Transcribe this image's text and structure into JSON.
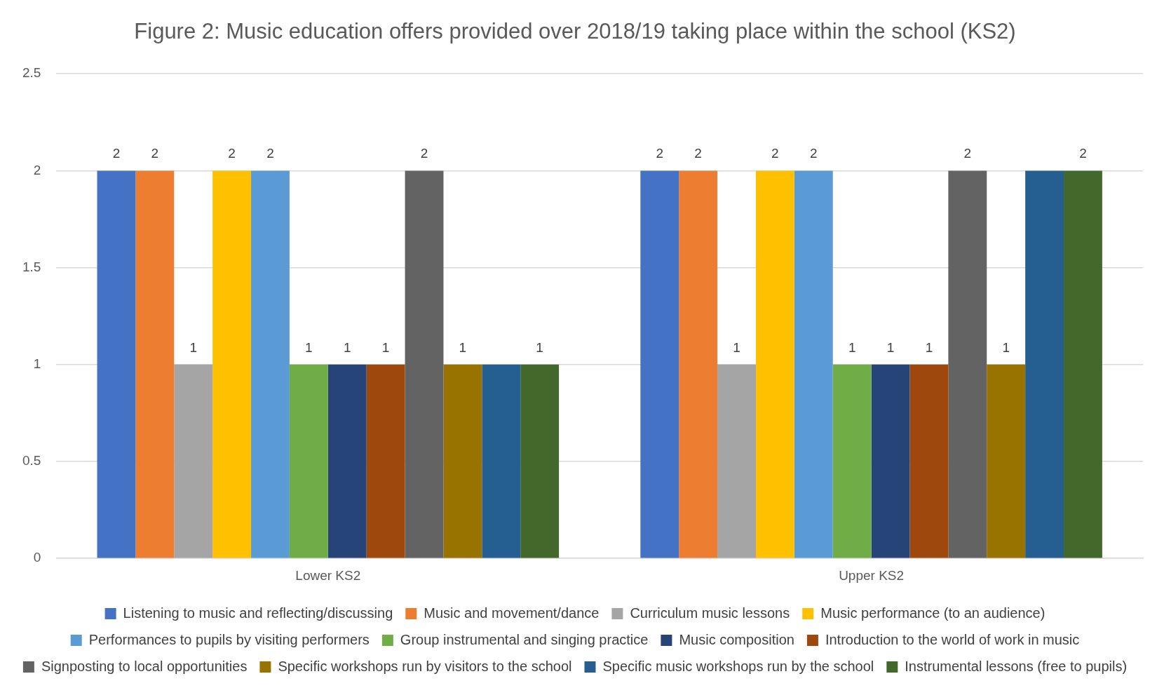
{
  "chart_data": {
    "type": "bar",
    "title": "Figure 2: Music education offers provided over 2018/19 taking place within the school (KS2)",
    "categories": [
      "Lower KS2",
      "Upper KS2"
    ],
    "series": [
      {
        "name": "Listening to music and reflecting/discussing",
        "color": "#4472c4",
        "values": [
          2,
          2
        ],
        "value_labels": [
          "2",
          "2"
        ]
      },
      {
        "name": "Music and movement/dance",
        "color": "#ed7d31",
        "values": [
          2,
          2
        ],
        "value_labels": [
          "2",
          "2"
        ]
      },
      {
        "name": "Curriculum music lessons",
        "color": "#a5a5a5",
        "values": [
          1,
          1
        ],
        "value_labels": [
          "1",
          "1"
        ]
      },
      {
        "name": "Music performance (to an audience)",
        "color": "#ffc000",
        "values": [
          2,
          2
        ],
        "value_labels": [
          "2",
          "2"
        ]
      },
      {
        "name": "Performances to pupils by visiting performers",
        "color": "#5b9bd5",
        "values": [
          2,
          2
        ],
        "value_labels": [
          "2",
          "2"
        ]
      },
      {
        "name": "Group instrumental and singing practice",
        "color": "#70ad47",
        "values": [
          1,
          1
        ],
        "value_labels": [
          "1",
          "1"
        ]
      },
      {
        "name": "Music composition",
        "color": "#264478",
        "values": [
          1,
          1
        ],
        "value_labels": [
          "1",
          "1"
        ]
      },
      {
        "name": "Introduction to the world of work in music",
        "color": "#9e480e",
        "values": [
          1,
          1
        ],
        "value_labels": [
          "1",
          "1"
        ]
      },
      {
        "name": "Signposting to local opportunities",
        "color": "#636363",
        "values": [
          2,
          2
        ],
        "value_labels": [
          "2",
          "2"
        ]
      },
      {
        "name": "Specific workshops run by visitors to the school",
        "color": "#997300",
        "values": [
          1,
          1
        ],
        "value_labels": [
          "1",
          "1"
        ]
      },
      {
        "name": "Specific music workshops run by the school",
        "color": "#255e91",
        "values": [
          1,
          2
        ],
        "value_labels": [
          null,
          null
        ]
      },
      {
        "name": "Instrumental lessons (free to pupils)",
        "color": "#43682b",
        "values": [
          1,
          2
        ],
        "value_labels": [
          "1",
          "2"
        ]
      }
    ],
    "ylim": [
      0,
      2.5
    ],
    "yticks": [
      0,
      0.5,
      1,
      1.5,
      2,
      2.5
    ],
    "grid": "y",
    "legend": "bottom"
  }
}
